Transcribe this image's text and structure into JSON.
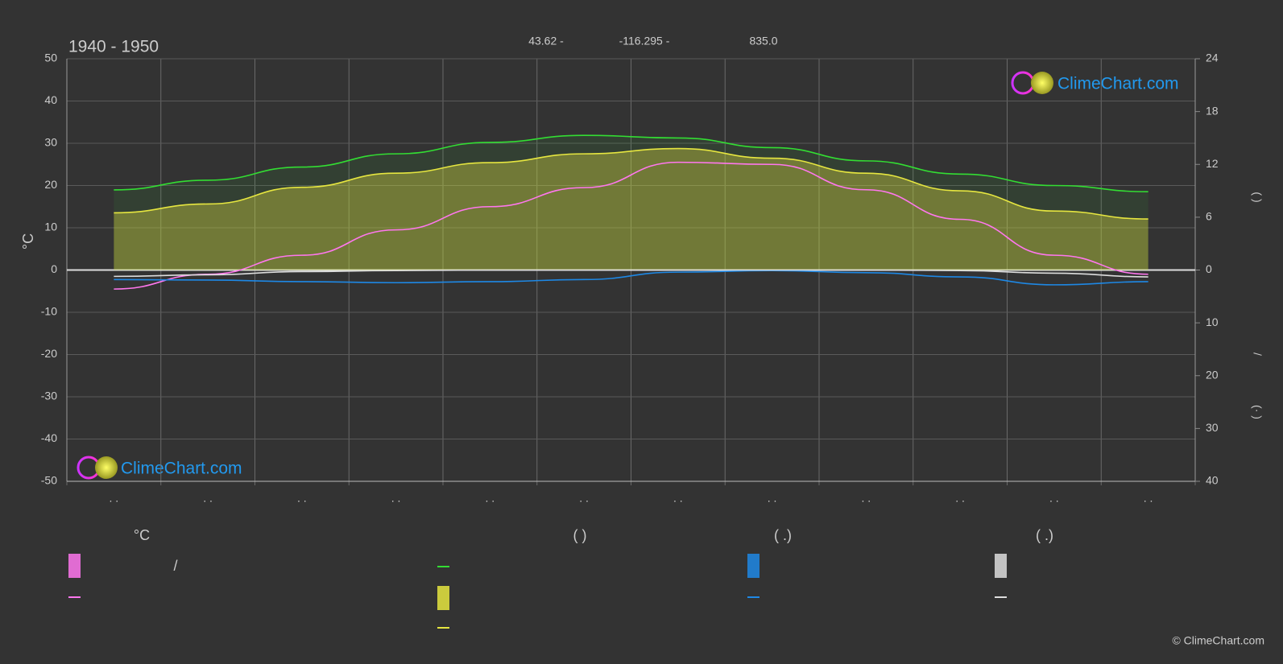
{
  "chart_data": {
    "type": "line",
    "title": "1940 - 1950",
    "header": [
      "43.62 -",
      "-116.295 -",
      "835.0"
    ],
    "y_label": "°C",
    "y2_labels": [
      "(   )",
      "/",
      "(·   )"
    ],
    "categories": [
      ". .",
      ". .",
      ". .",
      ". .",
      ". .",
      ". .",
      ". .",
      ". .",
      ". .",
      ". .",
      ". .",
      ". ."
    ],
    "ylim": [
      -50,
      50
    ],
    "yticks": [
      -50,
      -40,
      -30,
      -20,
      -10,
      0,
      10,
      20,
      30,
      40,
      50
    ],
    "y2lim": [
      0,
      24
    ],
    "y2ticks": [
      0,
      6,
      12,
      18,
      24
    ],
    "y3lim": [
      0,
      40
    ],
    "y3ticks": [
      10,
      20,
      30,
      40
    ],
    "grid": true,
    "series": [
      {
        "color": "#33dd33",
        "axis": "y2",
        "area": true,
        "values": [
          9.1,
          10.2,
          11.7,
          13.2,
          14.5,
          15.3,
          15.0,
          13.9,
          12.4,
          10.9,
          9.6,
          8.9
        ]
      },
      {
        "color": "#e6e640",
        "axis": "y2",
        "area": true,
        "values": [
          6.5,
          7.5,
          9.4,
          11.0,
          12.2,
          13.2,
          13.8,
          12.7,
          11.0,
          9.0,
          6.7,
          5.8
        ]
      },
      {
        "color": "#ff77ee",
        "axis": "y",
        "values": [
          -4.5,
          -1.0,
          3.5,
          9.5,
          15.0,
          19.5,
          25.5,
          25.0,
          19.0,
          12.0,
          3.5,
          -1.0
        ]
      },
      {
        "color": "#1e88e5",
        "axis": "y3",
        "values": [
          1.8,
          1.9,
          2.2,
          2.4,
          2.2,
          1.8,
          0.4,
          0.1,
          0.5,
          1.3,
          2.8,
          2.2
        ]
      },
      {
        "color": "#dddddd",
        "axis": "y3",
        "values": [
          1.2,
          0.9,
          0.3,
          0.1,
          0,
          0,
          0,
          0,
          0,
          0.1,
          0.6,
          1.3
        ]
      }
    ],
    "legend_headers": [
      "°C",
      "(          )",
      "(   .)",
      "(   .)"
    ],
    "legend_note": "/",
    "logo_text": "ClimeChart.com",
    "copyright": "© ClimeChart.com"
  }
}
